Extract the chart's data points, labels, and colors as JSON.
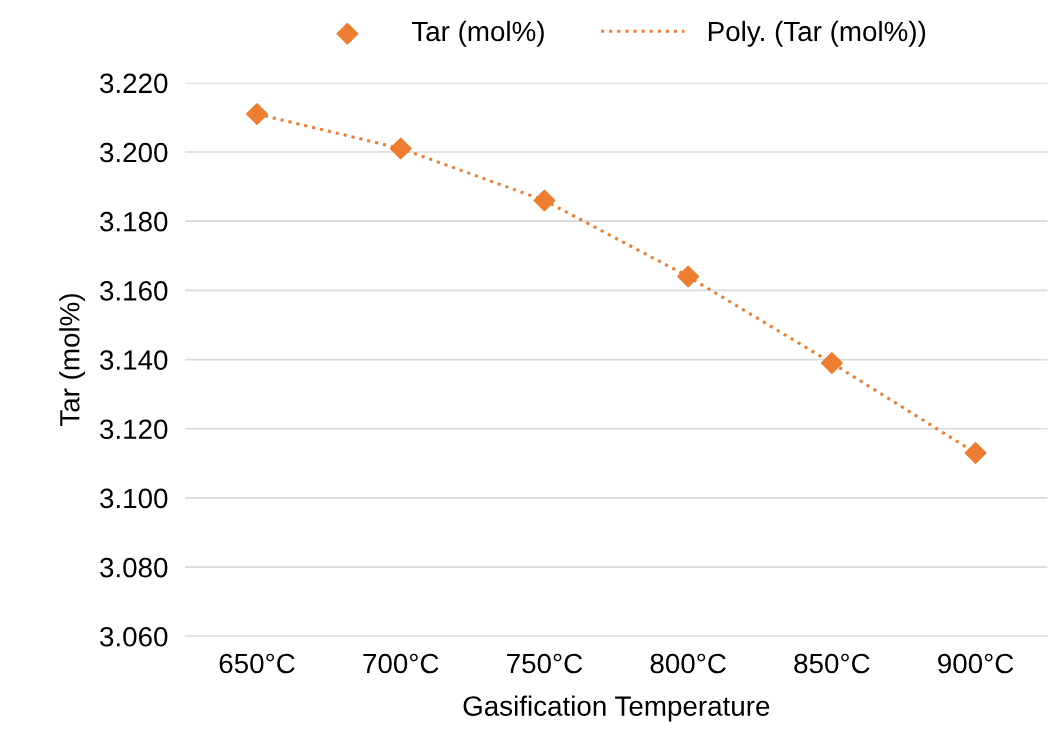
{
  "chart_data": {
    "type": "scatter",
    "xlabel": "Gasification Temperature",
    "ylabel": "Tar (mol%)",
    "categories": [
      "650°C",
      "700°C",
      "750°C",
      "800°C",
      "850°C",
      "900°C"
    ],
    "series": [
      {
        "name": "Tar (mol%)",
        "color": "#ed7d31",
        "marker": "diamond",
        "values": [
          3.211,
          3.201,
          3.186,
          3.164,
          3.139,
          3.113
        ]
      },
      {
        "name": "Poly. (Tar (mol%))",
        "type": "line",
        "color": "#ed7d31",
        "line_style": "dotted",
        "values": [
          3.211,
          3.201,
          3.186,
          3.164,
          3.139,
          3.113
        ]
      }
    ],
    "ylim": [
      3.06,
      3.22
    ],
    "yticks": [
      {
        "value": 3.06,
        "label": "3.060"
      },
      {
        "value": 3.08,
        "label": "3.080"
      },
      {
        "value": 3.1,
        "label": "3.100"
      },
      {
        "value": 3.12,
        "label": "3.120"
      },
      {
        "value": 3.14,
        "label": "3.140"
      },
      {
        "value": 3.16,
        "label": "3.160"
      },
      {
        "value": 3.18,
        "label": "3.180"
      },
      {
        "value": 3.2,
        "label": "3.200"
      },
      {
        "value": 3.22,
        "label": "3.220"
      }
    ],
    "grid": "y",
    "legend": "top"
  }
}
